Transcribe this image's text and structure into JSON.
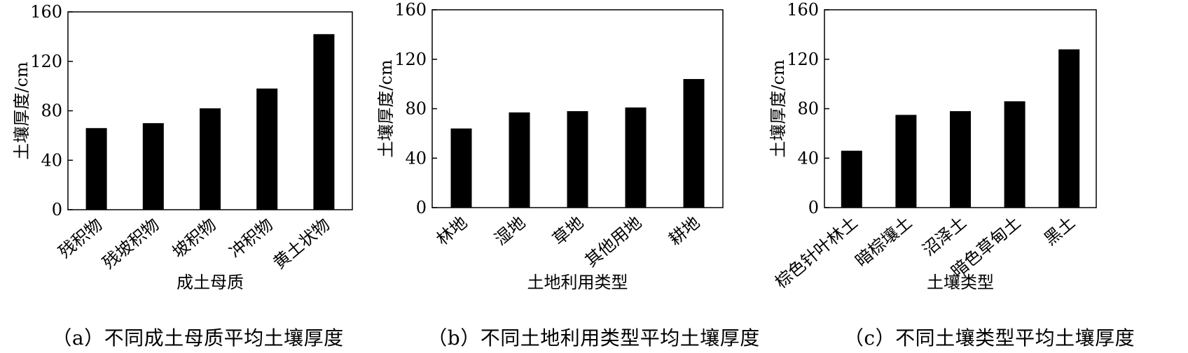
{
  "charts": [
    {
      "caption": "（a）不同成土母质平均土壤厚度",
      "chart_data": {
        "type": "bar",
        "categories": [
          "残积物",
          "残坡积物",
          "坡积物",
          "冲积物",
          "黄土状物"
        ],
        "values": [
          66,
          70,
          82,
          98,
          142
        ],
        "xlabel": "成土母质",
        "ylabel": "土壤厚度/cm",
        "ylim": [
          0,
          160
        ],
        "yticks": [
          0,
          40,
          80,
          120,
          160
        ],
        "bar_color": "#000000"
      }
    },
    {
      "caption": "（b）不同土地利用类型平均土壤厚度",
      "chart_data": {
        "type": "bar",
        "categories": [
          "林地",
          "湿地",
          "草地",
          "其他用地",
          "耕地"
        ],
        "values": [
          64,
          77,
          78,
          81,
          104
        ],
        "xlabel": "土地利用类型",
        "ylabel": "土壤厚度/cm",
        "ylim": [
          0,
          160
        ],
        "yticks": [
          0,
          40,
          80,
          120,
          160
        ],
        "bar_color": "#000000"
      }
    },
    {
      "caption": "（c）不同土壤类型平均土壤厚度",
      "chart_data": {
        "type": "bar",
        "categories": [
          "棕色针叶林土",
          "暗棕壤土",
          "沼泽土",
          "暗色草甸土",
          "黑土"
        ],
        "values": [
          46,
          75,
          78,
          86,
          128
        ],
        "xlabel": "土壤类型",
        "ylabel": "土壤厚度/cm",
        "ylim": [
          0,
          160
        ],
        "yticks": [
          0,
          40,
          80,
          120,
          160
        ],
        "bar_color": "#000000"
      }
    }
  ]
}
